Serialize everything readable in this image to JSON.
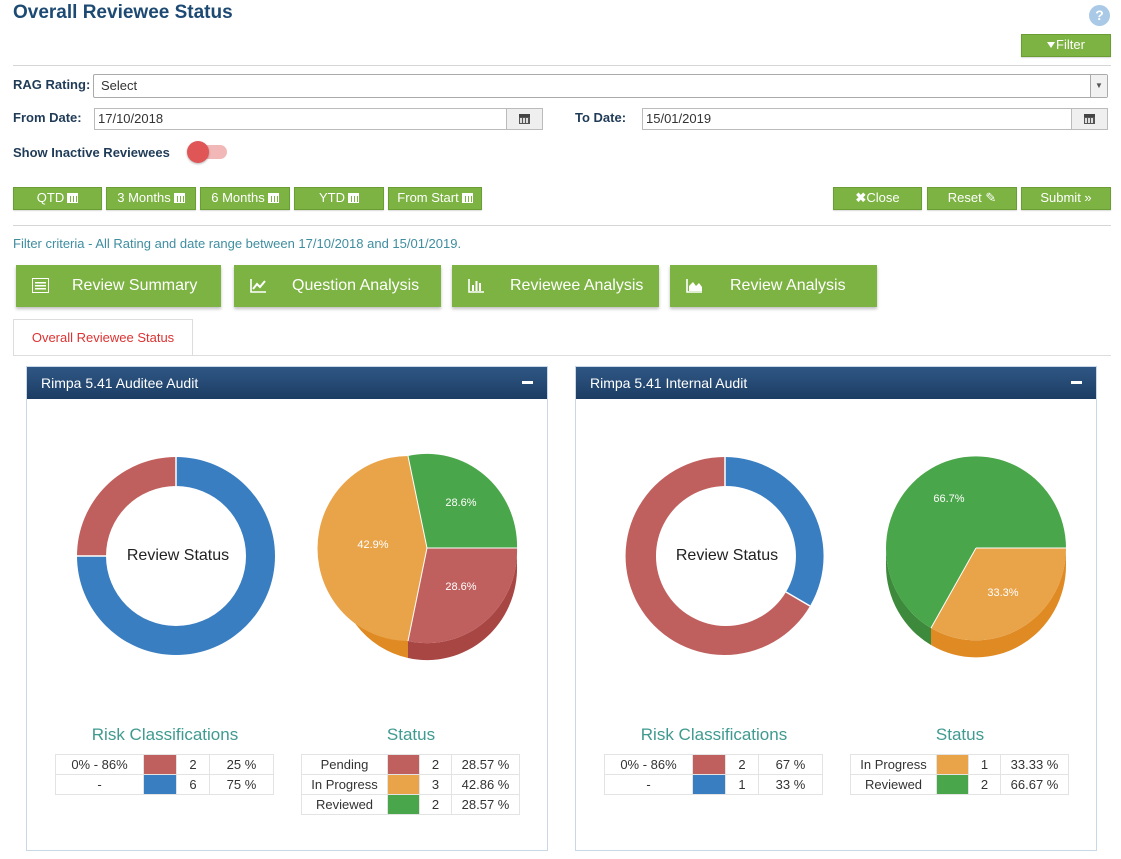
{
  "page": {
    "title": "Overall Reviewee Status",
    "help": "?"
  },
  "toolbar": {
    "filter_label": "Filter"
  },
  "filters": {
    "rag_label": "RAG Rating:",
    "rag_value": "Select",
    "from_label": "From Date:",
    "from_value": "17/10/2018",
    "to_label": "To Date:",
    "to_value": "15/01/2019",
    "inactive_label": "Show Inactive Reviewees"
  },
  "ranges": [
    {
      "label": "QTD"
    },
    {
      "label": "3 Months"
    },
    {
      "label": "6 Months"
    },
    {
      "label": "YTD"
    },
    {
      "label": "From Start"
    }
  ],
  "actions": {
    "close_label": "Close",
    "reset_label": "Reset",
    "submit_label": "Submit »"
  },
  "filter_criteria": "Filter criteria - All Rating and date range between 17/10/2018 and 15/01/2019.",
  "tabs": [
    {
      "label": "Review Summary",
      "icon": "list-icon"
    },
    {
      "label": "Question Analysis",
      "icon": "line-chart-icon"
    },
    {
      "label": "Reviewee Analysis",
      "icon": "bar-chart-icon"
    },
    {
      "label": "Review Analysis",
      "icon": "area-chart-icon"
    }
  ],
  "subtab": {
    "label": "Overall Reviewee Status"
  },
  "colors": {
    "red": "#c0605e",
    "blue": "#3a7ec2",
    "orange": "#e9a44a",
    "green": "#4aa64a",
    "brand_green": "#7cb342",
    "header_navy": "#1c3d63"
  },
  "panels": [
    {
      "title": "Rimpa 5.41 Auditee Audit",
      "donut_center": "Review Status",
      "risk_title": "Risk Classifications",
      "risk": [
        {
          "label": "0% - 86%",
          "color": "#c0605e",
          "count": "2",
          "pct": "25 %"
        },
        {
          "label": "-",
          "color": "#3a7ec2",
          "count": "6",
          "pct": "75 %"
        }
      ],
      "status_title": "Status",
      "status": [
        {
          "label": "Pending",
          "color": "#c0605e",
          "count": "2",
          "pct": "28.57 %"
        },
        {
          "label": "In Progress",
          "color": "#e9a44a",
          "count": "3",
          "pct": "42.86 %"
        },
        {
          "label": "Reviewed",
          "color": "#4aa64a",
          "count": "2",
          "pct": "28.57 %"
        }
      ],
      "pie_labels": [
        "28.6%",
        "28.6%",
        "42.9%"
      ]
    },
    {
      "title": "Rimpa 5.41 Internal Audit",
      "donut_center": "Review Status",
      "risk_title": "Risk Classifications",
      "risk": [
        {
          "label": "0% - 86%",
          "color": "#c0605e",
          "count": "2",
          "pct": "67 %"
        },
        {
          "label": "-",
          "color": "#3a7ec2",
          "count": "1",
          "pct": "33 %"
        }
      ],
      "status_title": "Status",
      "status": [
        {
          "label": "In Progress",
          "color": "#e9a44a",
          "count": "1",
          "pct": "33.33 %"
        },
        {
          "label": "Reviewed",
          "color": "#4aa64a",
          "count": "2",
          "pct": "66.67 %"
        }
      ],
      "pie_labels": [
        "66.7%",
        "33.3%"
      ]
    }
  ]
}
